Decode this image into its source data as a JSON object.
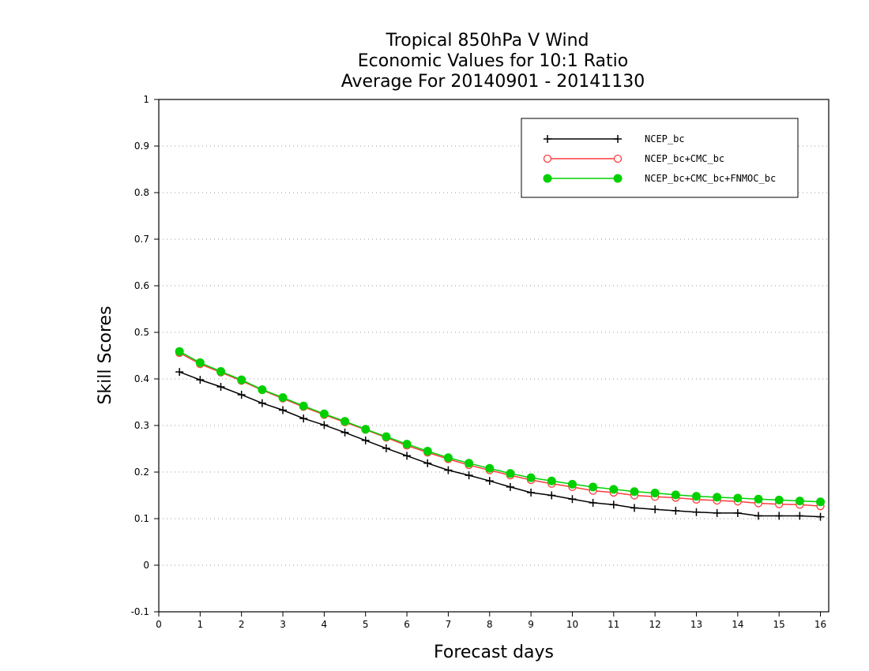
{
  "chart_data": {
    "type": "line",
    "title": [
      "Tropical 850hPa V Wind",
      "Economic Values for 10:1 Ratio",
      "Average For 20140901 - 20141130"
    ],
    "xlabel": "Forecast days",
    "ylabel": "Skill Scores",
    "xlim": [
      0,
      16.2
    ],
    "ylim": [
      -0.1,
      1
    ],
    "x_ticks": [
      "0",
      "1",
      "2",
      "3",
      "4",
      "5",
      "6",
      "7",
      "8",
      "9",
      "10",
      "11",
      "12",
      "13",
      "14",
      "15",
      "16"
    ],
    "y_ticks": [
      "-0.1",
      "0",
      "0.1",
      "0.2",
      "0.3",
      "0.4",
      "0.5",
      "0.6",
      "0.7",
      "0.8",
      "0.9",
      "1"
    ],
    "grid": "dotted horizontal",
    "legend_position": "top-right",
    "x": [
      0.5,
      1,
      1.5,
      2,
      2.5,
      3,
      3.5,
      4,
      4.5,
      5,
      5.5,
      6,
      6.5,
      7,
      7.5,
      8,
      8.5,
      9,
      9.5,
      10,
      10.5,
      11,
      11.5,
      12,
      12.5,
      13,
      13.5,
      14,
      14.5,
      15,
      15.5,
      16
    ],
    "series": [
      {
        "name": "NCEP_bc",
        "color": "#000000",
        "marker": "plus",
        "values": [
          0.415,
          0.398,
          0.383,
          0.366,
          0.348,
          0.333,
          0.315,
          0.301,
          0.285,
          0.268,
          0.251,
          0.235,
          0.219,
          0.204,
          0.193,
          0.181,
          0.168,
          0.156,
          0.15,
          0.142,
          0.134,
          0.13,
          0.123,
          0.12,
          0.117,
          0.114,
          0.112,
          0.112,
          0.106,
          0.106,
          0.106,
          0.104
        ]
      },
      {
        "name": "NCEP_bc+CMC_bc",
        "color": "#ff3b3b",
        "marker": "open-circle",
        "values": [
          0.456,
          0.432,
          0.414,
          0.396,
          0.376,
          0.358,
          0.34,
          0.323,
          0.307,
          0.291,
          0.274,
          0.257,
          0.242,
          0.228,
          0.215,
          0.204,
          0.193,
          0.183,
          0.175,
          0.168,
          0.16,
          0.156,
          0.15,
          0.147,
          0.145,
          0.141,
          0.139,
          0.137,
          0.133,
          0.131,
          0.13,
          0.127
        ]
      },
      {
        "name": "NCEP_bc+CMC_bc+FNMOC_bc",
        "color": "#00d000",
        "marker": "filled-circle",
        "values": [
          0.459,
          0.435,
          0.416,
          0.398,
          0.377,
          0.36,
          0.342,
          0.325,
          0.309,
          0.292,
          0.276,
          0.26,
          0.245,
          0.231,
          0.219,
          0.208,
          0.197,
          0.188,
          0.181,
          0.174,
          0.168,
          0.163,
          0.158,
          0.155,
          0.151,
          0.148,
          0.146,
          0.144,
          0.142,
          0.14,
          0.138,
          0.136
        ]
      }
    ]
  }
}
